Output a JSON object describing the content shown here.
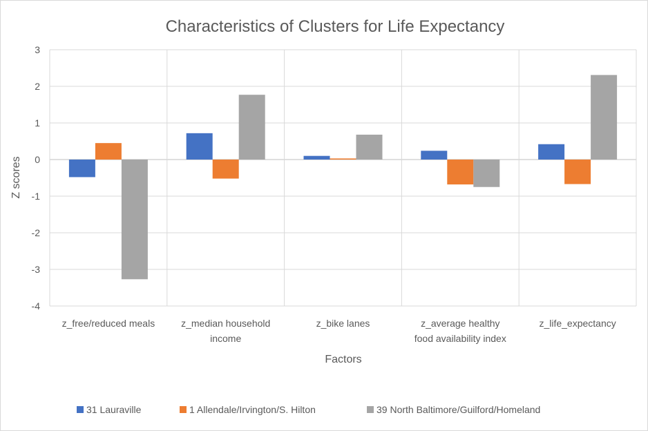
{
  "chart_data": {
    "type": "bar",
    "title": "Characteristics of Clusters for Life Expectancy",
    "xlabel": "Factors",
    "ylabel": "Z scores",
    "ylim": [
      -4,
      3
    ],
    "yticks": [
      "3",
      "2",
      "1",
      "0",
      "-1",
      "-2",
      "-3",
      "-4"
    ],
    "categories": [
      [
        "z_free/reduced meals"
      ],
      [
        "z_median household",
        "income"
      ],
      [
        "z_bike lanes"
      ],
      [
        "z_average healthy",
        "food availability index"
      ],
      [
        "z_life_expectancy"
      ]
    ],
    "series": [
      {
        "name": "31 Lauraville",
        "color": "#4472C4",
        "values": [
          -0.48,
          0.72,
          0.1,
          0.24,
          0.42
        ]
      },
      {
        "name": "1 Allendale/Irvington/S. Hilton",
        "color": "#ED7D31",
        "values": [
          0.45,
          -0.52,
          0.03,
          -0.68,
          -0.67
        ]
      },
      {
        "name": "39 North Baltimore/Guilford/Homeland",
        "color": "#A5A5A5",
        "values": [
          -3.27,
          1.77,
          0.68,
          -0.75,
          2.31
        ]
      }
    ],
    "grid": true,
    "legend_position": "bottom"
  }
}
